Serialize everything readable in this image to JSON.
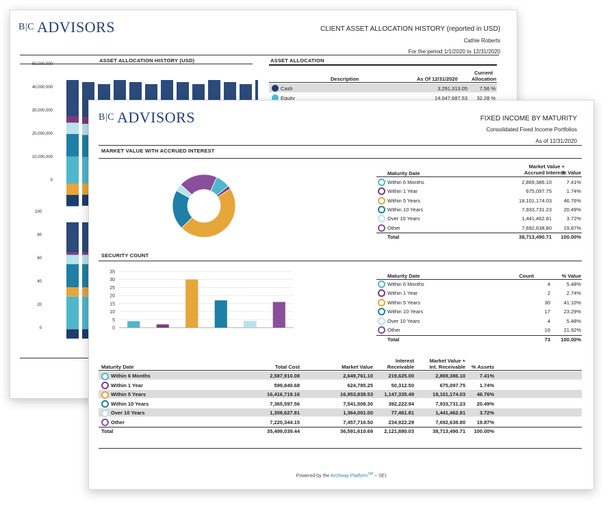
{
  "back": {
    "logo": {
      "mark": "B|C",
      "name": "ADVISORS"
    },
    "title": "CLIENT ASSET ALLOCATION HISTORY (reported in USD)",
    "client": "Cathie Roberts",
    "period": "For the period 1/1/2020 to 12/31/2020",
    "history_heading": "ASSET ALLOCATION HISTORY (USD)",
    "allocation_heading": "ASSET ALLOCATION",
    "alloc_headers": {
      "description": "Description",
      "as_of": "As Of 12/31/2020",
      "current": "Current",
      "allocation": "Allocation"
    },
    "alloc_rows": [
      {
        "label": "Cash",
        "value": "3,291,313.05",
        "pct": "7.56 %",
        "color": "#1d3d6b"
      },
      {
        "label": "Equity",
        "value": "14,047,687.53",
        "pct": "32.28 %",
        "color": "#4ec0d6"
      }
    ],
    "y_ticks_value": [
      "50,000,000",
      "40,000,000",
      "30,000,000",
      "20,000,000",
      "10,000,000",
      "0"
    ],
    "y_ticks_pct": [
      "100",
      "80",
      "60",
      "40",
      "20",
      "0"
    ]
  },
  "front": {
    "logo": {
      "mark": "B|C",
      "name": "ADVISORS"
    },
    "title": "FIXED INCOME BY MATURITY",
    "subtitle": "Consolidated Fixed Income Portfolios",
    "asof": "As of 12/31/2020",
    "mv_heading": "MARKET VALUE WITH ACCRUED INTEREST",
    "sc_heading": "SECURITY COUNT",
    "mv_headers": {
      "maturity": "Maturity Date",
      "mv1": "Market Value +",
      "mv2": "Accrued Interest",
      "pct": "% Value"
    },
    "mv_rows": [
      {
        "label": "Within 6 Months",
        "value": "2,869,386.10",
        "pct": "7.41%",
        "color": "#4fb7cc"
      },
      {
        "label": "Within 1 Year",
        "value": "675,097.75",
        "pct": "1.74%",
        "color": "#7d3a7e"
      },
      {
        "label": "Within 5 Years",
        "value": "18,101,174.03",
        "pct": "46.76%",
        "color": "#e6a63a"
      },
      {
        "label": "Within 10 Years",
        "value": "7,933,731.23",
        "pct": "20.49%",
        "color": "#1f7fa6"
      },
      {
        "label": "Over 10 Years",
        "value": "1,441,462.81",
        "pct": "3.72%",
        "color": "#b9e2ec"
      },
      {
        "label": "Other",
        "value": "7,692,638.80",
        "pct": "19.87%",
        "color": "#8a4f9a"
      }
    ],
    "mv_total": {
      "label": "Total",
      "value": "38,713,490.71",
      "pct": "100.00%"
    },
    "sc_headers": {
      "maturity": "Maturity Date",
      "count": "Count",
      "pct": "% Value"
    },
    "sc_rows": [
      {
        "label": "Within 6 Months",
        "count": "4",
        "pct": "5.48%"
      },
      {
        "label": "Within 1 Year",
        "count": "2",
        "pct": "2.74%"
      },
      {
        "label": "Within 5 Years",
        "count": "30",
        "pct": "41.10%"
      },
      {
        "label": "Within 10 Years",
        "count": "17",
        "pct": "23.29%"
      },
      {
        "label": "Over 10 Years",
        "count": "4",
        "pct": "5.48%"
      },
      {
        "label": "Other",
        "count": "16",
        "pct": "21.92%"
      }
    ],
    "sc_total": {
      "label": "Total",
      "count": "73",
      "pct": "100.00%"
    },
    "bottom_headers": {
      "maturity": "Maturity Date",
      "total_cost": "Total Cost",
      "market_value": "Market Value",
      "interest1": "Interest",
      "interest2": "Receivable",
      "mvi1": "Market Value +",
      "mvi2": "Int. Receivable",
      "pct": "% Assets"
    },
    "bottom_rows": [
      {
        "label": "Within 6 Months",
        "cost": "2,587,910.08",
        "mv": "2,649,761.10",
        "int": "219,625.00",
        "mvi": "2,869,386.10",
        "pct": "7.41%"
      },
      {
        "label": "Within 1 Year",
        "cost": "599,840.68",
        "mv": "624,785.25",
        "int": "50,312.50",
        "mvi": "675,097.75",
        "pct": "1.74%"
      },
      {
        "label": "Within 5 Years",
        "cost": "16,416,719.16",
        "mv": "16,953,838.53",
        "int": "1,147,335.49",
        "mvi": "18,101,174.03",
        "pct": "46.76%"
      },
      {
        "label": "Within 10 Years",
        "cost": "7,365,597.56",
        "mv": "7,541,508.30",
        "int": "392,222.94",
        "mvi": "7,933,731.23",
        "pct": "20.49%"
      },
      {
        "label": "Over 10 Years",
        "cost": "1,308,627.81",
        "mv": "1,364,001.00",
        "int": "77,461.81",
        "mvi": "1,441,462.81",
        "pct": "3.72%"
      },
      {
        "label": "Other",
        "cost": "7,220,344.15",
        "mv": "7,457,716.50",
        "int": "234,922.29",
        "mvi": "7,692,638.80",
        "pct": "19.87%"
      }
    ],
    "bottom_total": {
      "label": "Total",
      "cost": "35,499,039.44",
      "mv": "36,591,610.69",
      "int": "2,121,880.03",
      "mvi": "38,713,490.71",
      "pct": "100.00%"
    },
    "footer": {
      "prefix": "Powered by the ",
      "brand": "Archway Platform",
      "tm": "SM",
      "suffix": " – SEI"
    }
  },
  "chart_data": [
    {
      "type": "pie",
      "title": "MARKET VALUE WITH ACCRUED INTEREST",
      "categories": [
        "Within 6 Months",
        "Within 1 Year",
        "Within 5 Years",
        "Within 10 Years",
        "Over 10 Years",
        "Other"
      ],
      "values": [
        7.41,
        1.74,
        46.76,
        20.49,
        3.72,
        19.87
      ],
      "colors": [
        "#4fb7cc",
        "#7d3a7e",
        "#e6a63a",
        "#1f7fa6",
        "#b9e2ec",
        "#8a4f9a"
      ],
      "donut": true
    },
    {
      "type": "bar",
      "title": "SECURITY COUNT",
      "categories": [
        "Within 6 Months",
        "Within 1 Year",
        "Within 5 Years",
        "Within 10 Years",
        "Over 10 Years",
        "Other"
      ],
      "values": [
        4,
        2,
        30,
        17,
        4,
        16
      ],
      "colors": [
        "#4fb7cc",
        "#7d3a7e",
        "#e6a63a",
        "#1f7fa6",
        "#b9e2ec",
        "#8a4f9a"
      ],
      "ylim": [
        0,
        35
      ],
      "yticks": [
        0,
        5,
        10,
        15,
        20,
        25,
        30,
        35
      ],
      "grid": true
    }
  ]
}
